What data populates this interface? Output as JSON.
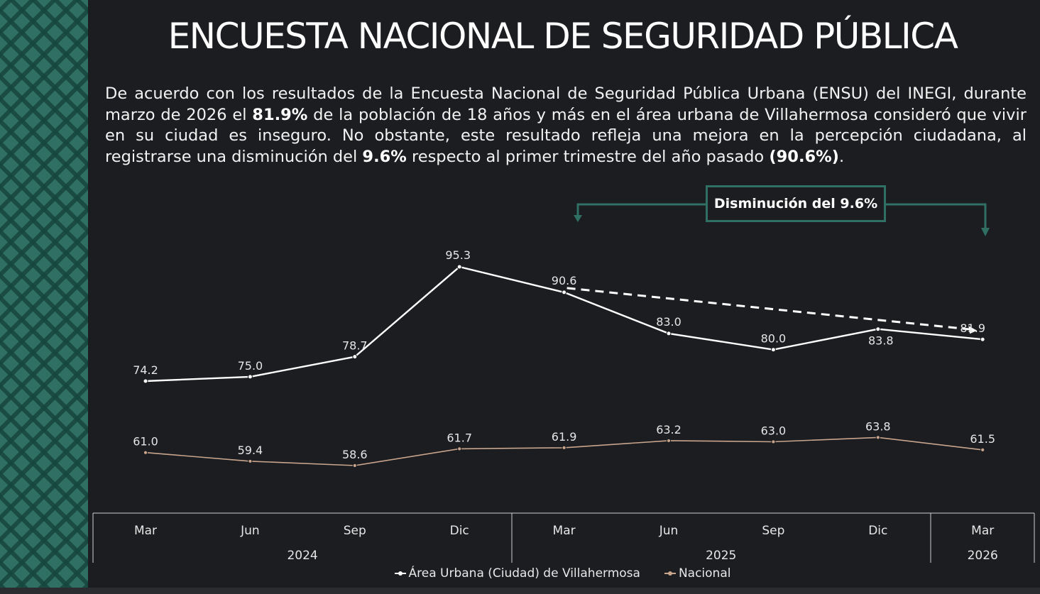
{
  "header": {
    "title": "ENCUESTA NACIONAL DE SEGURIDAD PÚBLICA"
  },
  "intro": {
    "p1": "De acuerdo con los resultados de la Encuesta Nacional de Seguridad Pública Urbana (ENSU) del INEGI, durante marzo de 2026 el ",
    "b1": "81.9%",
    "p2": " de la población de 18 años y más en el área urbana de Villahermosa consideró que vivir en su ciudad es inseguro. No obstante, este resultado refleja una mejora en la percepción ciudadana, al registrarse una disminución del ",
    "b2": "9.6%",
    "p3": " respecto al primer trimestre del año pasado ",
    "b3": "(90.6%)",
    "p4": "."
  },
  "callout": {
    "label": "Disminución del 9.6%"
  },
  "colors": {
    "background": "#1b1d20",
    "accent_green": "#2f6f64",
    "series_urbana": "#ffffff",
    "series_nacional": "#c8a58c",
    "axis": "#cfcfcf"
  },
  "chart_data": {
    "type": "line",
    "title": "",
    "xlabel": "",
    "ylabel": "",
    "categories": [
      "Mar",
      "Jun",
      "Sep",
      "Dic",
      "Mar",
      "Jun",
      "Sep",
      "Dic",
      "Mar"
    ],
    "year_groups": [
      {
        "label": "2024",
        "span": 4
      },
      {
        "label": "2025",
        "span": 4
      },
      {
        "label": "2026",
        "span": 1
      }
    ],
    "series": [
      {
        "name": "Área Urbana (Ciudad) de Villahermosa",
        "values": [
          74.2,
          75.0,
          78.7,
          95.3,
          90.6,
          83.0,
          80.0,
          83.8,
          81.9
        ],
        "labels": [
          "74.2",
          "75.0",
          "78.7",
          "95.3",
          "90.6",
          "83.0",
          "80.0",
          "83.8",
          "81.9"
        ]
      },
      {
        "name": "Nacional",
        "values": [
          61.0,
          59.4,
          58.6,
          61.7,
          61.9,
          63.2,
          63.0,
          63.8,
          61.5
        ],
        "labels": [
          "61.0",
          "59.4",
          "58.6",
          "61.7",
          "61.9",
          "63.2",
          "63.0",
          "63.8",
          "61.5"
        ]
      }
    ],
    "ylim": [
      50,
      100
    ],
    "grid": false,
    "legend": "bottom-center",
    "trend_line": {
      "from_index": 4,
      "to_index": 8,
      "series": 0,
      "style": "dashed"
    }
  }
}
